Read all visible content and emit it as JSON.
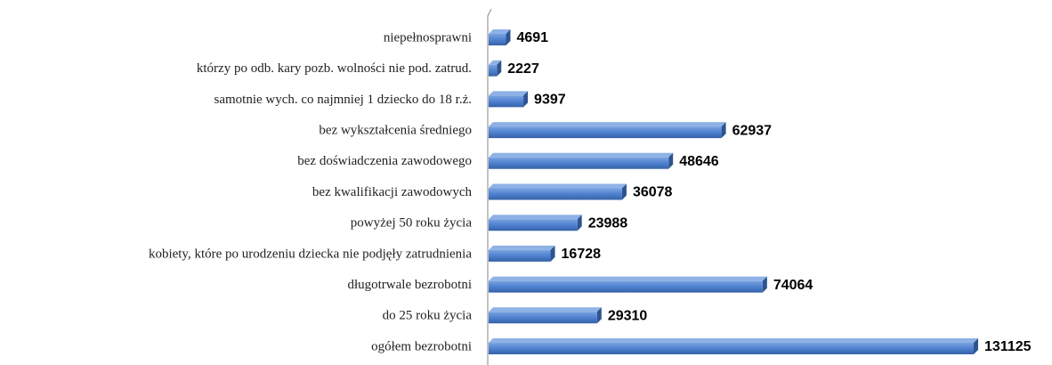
{
  "chart_data": {
    "type": "bar",
    "orientation": "horizontal",
    "categories": [
      "niepełnosprawni",
      "którzy po odb. kary pozb. wolności nie pod. zatrud.",
      "samotnie wych. co najmniej 1 dziecko do 18 r.ż.",
      "bez wykształcenia średniego",
      "bez doświadczenia zawodowego",
      "bez kwalifikacji zawodowych",
      "powyżej 50 roku życia",
      "kobiety, które po urodzeniu dziecka nie podjęły zatrudnienia",
      "długotrwale bezrobotni",
      "do 25 roku życia",
      "ogółem bezrobotni"
    ],
    "values": [
      4691,
      2227,
      9397,
      62937,
      48646,
      36078,
      23988,
      16728,
      74064,
      29310,
      131125
    ],
    "color": "#4f81bd"
  }
}
